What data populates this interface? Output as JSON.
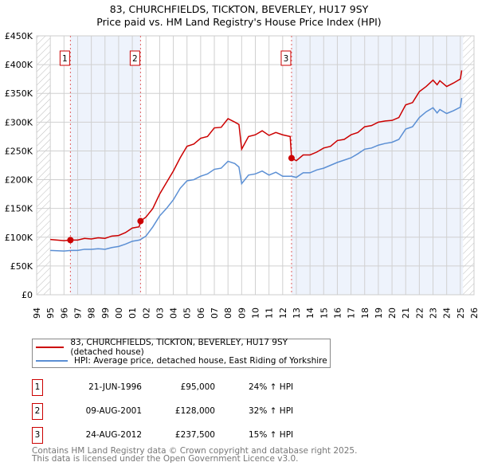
{
  "chart_data": {
    "type": "line",
    "title": "83, CHURCHFIELDS, TICKTON, BEVERLEY, HU17 9SY",
    "subtitle": "Price paid vs. HM Land Registry's House Price Index (HPI)",
    "xlim": [
      1994,
      2026
    ],
    "ylim": [
      0,
      450000
    ],
    "yticks": [
      {
        "v": 0,
        "label": "£0"
      },
      {
        "v": 50000,
        "label": "£50K"
      },
      {
        "v": 100000,
        "label": "£100K"
      },
      {
        "v": 150000,
        "label": "£150K"
      },
      {
        "v": 200000,
        "label": "£200K"
      },
      {
        "v": 250000,
        "label": "£250K"
      },
      {
        "v": 300000,
        "label": "£300K"
      },
      {
        "v": 350000,
        "label": "£350K"
      },
      {
        "v": 400000,
        "label": "£400K"
      },
      {
        "v": 450000,
        "label": "£450K"
      }
    ],
    "xticks": [
      "1994",
      "1995",
      "1996",
      "1997",
      "1998",
      "1999",
      "2000",
      "2001",
      "2002",
      "2003",
      "2004",
      "2005",
      "2006",
      "2007",
      "2008",
      "2009",
      "2010",
      "2011",
      "2012",
      "2013",
      "2014",
      "2015",
      "2016",
      "2017",
      "2018",
      "2019",
      "2020",
      "2021",
      "2022",
      "2023",
      "2024",
      "2025",
      "2026"
    ],
    "grid": true,
    "series": [
      {
        "name": "83, CHURCHFIELDS, TICKTON, BEVERLEY, HU17 9SY (detached house)",
        "color": "#cc0000",
        "x": [
          1995,
          1996,
          1996.47,
          1997,
          1997.5,
          1998,
          1998.5,
          1999,
          1999.5,
          2000,
          2000.5,
          2001,
          2001.5,
          2001.6,
          2002,
          2002.5,
          2003,
          2003.5,
          2004,
          2004.5,
          2005,
          2005.5,
          2006,
          2006.5,
          2007,
          2007.5,
          2008,
          2008.5,
          2008.8,
          2009,
          2009.5,
          2010,
          2010.5,
          2011,
          2011.5,
          2012,
          2012.55,
          2012.65,
          2013,
          2013.5,
          2014,
          2014.5,
          2015,
          2015.5,
          2016,
          2016.5,
          2017,
          2017.5,
          2018,
          2018.5,
          2019,
          2019.5,
          2020,
          2020.5,
          2021,
          2021.5,
          2022,
          2022.5,
          2023,
          2023.3,
          2023.5,
          2024,
          2024.5,
          2025,
          2025.1
        ],
        "y": [
          96000,
          94000,
          95000,
          95000,
          98000,
          97000,
          99000,
          98000,
          102000,
          103000,
          108000,
          116000,
          118000,
          128000,
          135000,
          150000,
          175000,
          195000,
          215000,
          238000,
          258000,
          262000,
          272000,
          275000,
          290000,
          291000,
          306000,
          300000,
          296000,
          253000,
          275000,
          278000,
          285000,
          277000,
          282000,
          278000,
          275000,
          237500,
          233000,
          243000,
          243000,
          248000,
          255000,
          258000,
          268000,
          270000,
          278000,
          282000,
          292000,
          294000,
          300000,
          302000,
          303000,
          308000,
          330000,
          334000,
          353000,
          362000,
          373000,
          365000,
          372000,
          362000,
          368000,
          375000,
          390000
        ]
      },
      {
        "name": "HPI: Average price, detached house, East Riding of Yorkshire",
        "color": "#5b8fd4",
        "x": [
          1995,
          1996,
          1996.5,
          1997,
          1997.5,
          1998,
          1998.5,
          1999,
          1999.5,
          2000,
          2000.5,
          2001,
          2001.5,
          2001.6,
          2002,
          2002.5,
          2003,
          2003.5,
          2004,
          2004.5,
          2005,
          2005.5,
          2006,
          2006.5,
          2007,
          2007.5,
          2008,
          2008.5,
          2008.8,
          2009,
          2009.5,
          2010,
          2010.5,
          2011,
          2011.5,
          2012,
          2012.65,
          2013,
          2013.5,
          2014,
          2014.5,
          2015,
          2015.5,
          2016,
          2016.5,
          2017,
          2017.5,
          2018,
          2018.5,
          2019,
          2019.5,
          2020,
          2020.5,
          2021,
          2021.5,
          2022,
          2022.5,
          2023,
          2023.3,
          2023.5,
          2024,
          2024.5,
          2025,
          2025.1
        ],
        "y": [
          77000,
          76000,
          77000,
          77000,
          79000,
          79000,
          80000,
          79000,
          82000,
          84000,
          88000,
          93000,
          95000,
          96000,
          102000,
          118000,
          137000,
          150000,
          165000,
          185000,
          198000,
          200000,
          206000,
          210000,
          218000,
          220000,
          232000,
          228000,
          222000,
          193000,
          208000,
          210000,
          215000,
          208000,
          213000,
          206000,
          206000,
          204000,
          212000,
          212000,
          217000,
          220000,
          225000,
          230000,
          234000,
          238000,
          245000,
          253000,
          255000,
          260000,
          263000,
          265000,
          270000,
          288000,
          292000,
          308000,
          318000,
          325000,
          316000,
          322000,
          315000,
          320000,
          326000,
          342000
        ]
      }
    ],
    "sales": [
      {
        "label": "1",
        "x": 1996.47,
        "y": 95000
      },
      {
        "label": "2",
        "x": 2001.6,
        "y": 128000
      },
      {
        "label": "3",
        "x": 2012.65,
        "y": 237500
      }
    ],
    "shaded": [
      [
        1996.47,
        2001.6
      ],
      [
        2012.65,
        2025.2
      ]
    ],
    "hatched": [
      [
        1994,
        1995
      ],
      [
        2025.2,
        2026
      ]
    ]
  },
  "legend": {
    "items": [
      "83, CHURCHFIELDS, TICKTON, BEVERLEY, HU17 9SY (detached house)",
      "HPI: Average price, detached house, East Riding of Yorkshire"
    ]
  },
  "table": [
    {
      "num": "1",
      "date": "21-JUN-1996",
      "price": "£95,000",
      "hpi": "24% ↑ HPI"
    },
    {
      "num": "2",
      "date": "09-AUG-2001",
      "price": "£128,000",
      "hpi": "32% ↑ HPI"
    },
    {
      "num": "3",
      "date": "24-AUG-2012",
      "price": "£237,500",
      "hpi": "15% ↑ HPI"
    }
  ],
  "footer": {
    "line1": "Contains HM Land Registry data © Crown copyright and database right 2025.",
    "line2": "This data is licensed under the Open Government Licence v3.0."
  }
}
